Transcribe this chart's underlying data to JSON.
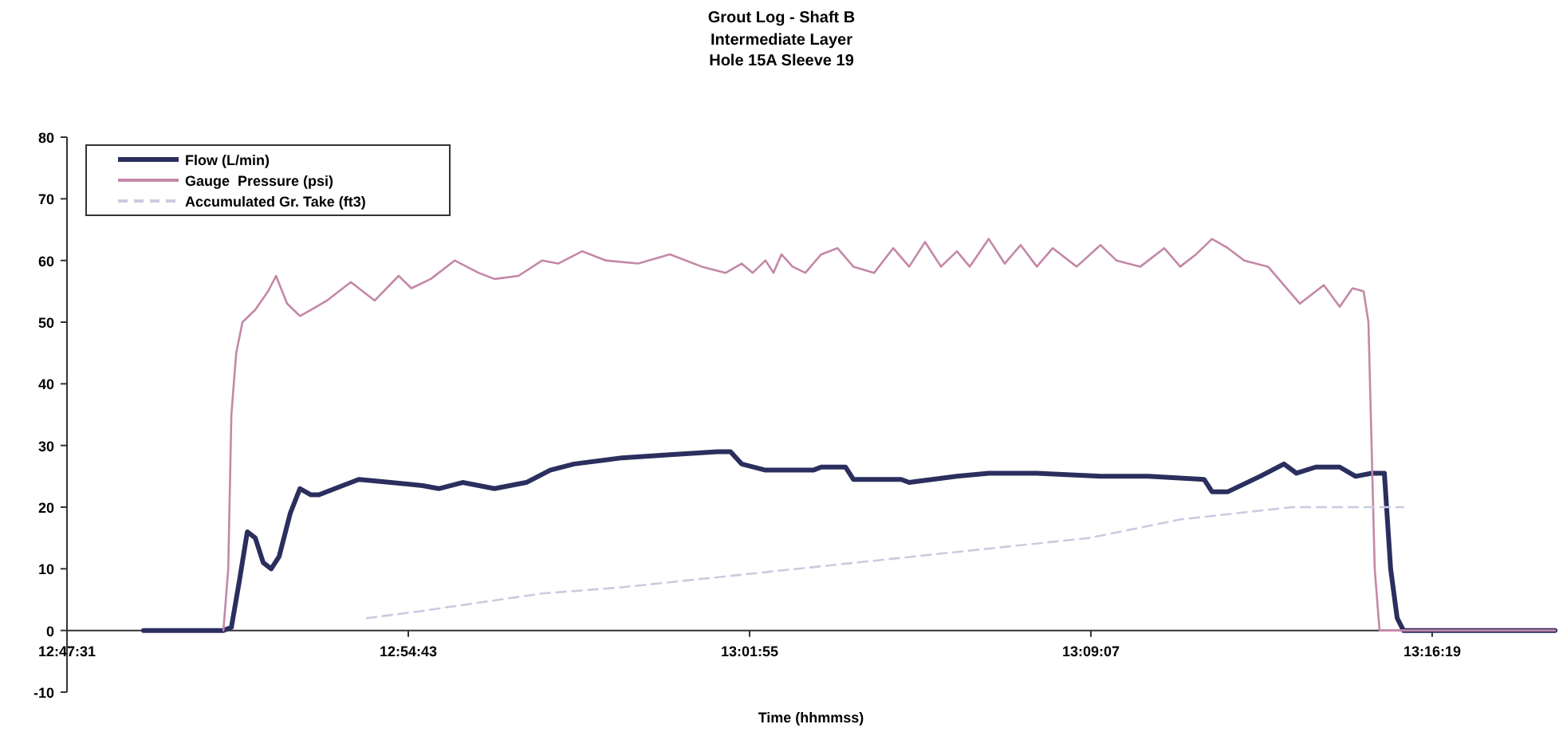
{
  "chart_data": {
    "type": "line",
    "title": "Grout Log - Shaft B",
    "subtitle": "Intermediate Layer\nHole 15A Sleeve 19",
    "xlabel": "Time (hhmmss)",
    "xlim": [
      12.7919,
      13.3151
    ],
    "xticks": [
      {
        "value": 12.7919,
        "label": "12:47:31"
      },
      {
        "value": 12.9119,
        "label": "12:54:43"
      },
      {
        "value": 13.0319,
        "label": "13:01:55"
      },
      {
        "value": 13.1519,
        "label": "13:09:07"
      },
      {
        "value": 13.2719,
        "label": "13:16:19"
      }
    ],
    "ylim": [
      -10,
      80
    ],
    "yticks": [
      -10,
      0,
      10,
      20,
      30,
      40,
      50,
      60,
      70,
      80
    ],
    "grid": false,
    "legend": "top left",
    "marker": "none",
    "series": [
      {
        "name": "Flow (L/min)",
        "color": "#2b2f5e",
        "line_style": "solid",
        "x": [
          12.8188,
          12.8469,
          12.8497,
          12.8525,
          12.8553,
          12.8581,
          12.8609,
          12.8637,
          12.8665,
          12.8704,
          12.8738,
          12.8777,
          12.8805,
          12.8861,
          12.8945,
          12.9057,
          12.9169,
          12.9226,
          12.931,
          12.9422,
          12.9534,
          12.9618,
          12.9702,
          12.987,
          13.0039,
          13.0207,
          13.0252,
          13.0291,
          13.0375,
          13.0543,
          13.0571,
          13.0656,
          13.0684,
          13.0852,
          13.088,
          13.1048,
          13.116,
          13.1329,
          13.1553,
          13.1721,
          13.1917,
          13.1945,
          13.2001,
          13.2114,
          13.2198,
          13.2242,
          13.231,
          13.2394,
          13.245,
          13.2506,
          13.2551,
          13.2573,
          13.2596,
          13.2618,
          13.3151
        ],
        "values": [
          0,
          0,
          0.5,
          8,
          16,
          15,
          11,
          10,
          12,
          19,
          23,
          22,
          22,
          23,
          24.5,
          24,
          23.5,
          23,
          24,
          23,
          24,
          26,
          27,
          28,
          28.5,
          29,
          29,
          27,
          26,
          26,
          26.5,
          26.5,
          24.5,
          24.5,
          24,
          25,
          25.5,
          25.5,
          25,
          25,
          24.5,
          22.5,
          22.5,
          25,
          27,
          25.5,
          26.5,
          26.5,
          25,
          25.5,
          25.5,
          10,
          2,
          0,
          0
        ]
      },
      {
        "name": "Gauge  Pressure (psi)",
        "color": "#c488a8",
        "line_style": "solid",
        "x": [
          12.8469,
          12.8486,
          12.8497,
          12.8514,
          12.8536,
          12.8581,
          12.8626,
          12.8654,
          12.8693,
          12.8738,
          12.8777,
          12.8833,
          12.8917,
          12.9001,
          12.9085,
          12.913,
          12.9198,
          12.9282,
          12.9366,
          12.9422,
          12.9506,
          12.959,
          12.9646,
          12.973,
          12.9814,
          12.9927,
          13.0039,
          13.0151,
          13.0235,
          13.0291,
          13.033,
          13.0375,
          13.0403,
          13.0431,
          13.047,
          13.0515,
          13.0571,
          13.0628,
          13.0684,
          13.0757,
          13.0824,
          13.088,
          13.0936,
          13.0992,
          13.1048,
          13.1093,
          13.116,
          13.1216,
          13.1272,
          13.1329,
          13.1385,
          13.1469,
          13.1553,
          13.1609,
          13.1693,
          13.1777,
          13.1833,
          13.1889,
          13.1945,
          13.2001,
          13.2058,
          13.2142,
          13.2198,
          13.2254,
          13.231,
          13.2338,
          13.2394,
          13.2439,
          13.2478,
          13.2495,
          13.2517,
          13.2534,
          13.3151
        ],
        "values": [
          0,
          10,
          35,
          45,
          50,
          52,
          55,
          57.5,
          53,
          51,
          52,
          53.5,
          56.5,
          53.5,
          57.5,
          55.5,
          57,
          60,
          58,
          57,
          57.5,
          60,
          59.5,
          61.5,
          60,
          59.5,
          61,
          59,
          58,
          59.5,
          58,
          60,
          58,
          61,
          59,
          58,
          61,
          62,
          59,
          58,
          62,
          59,
          63,
          59,
          61.5,
          59,
          63.5,
          59.5,
          62.5,
          59,
          62,
          59,
          62.5,
          60,
          59,
          62,
          59,
          61,
          63.5,
          62,
          60,
          59,
          56,
          53,
          55,
          56,
          52.5,
          55.5,
          55,
          50,
          10,
          0,
          0
        ]
      },
      {
        "name": "Accumulated Gr. Take (ft3)",
        "color": "#c8cce0",
        "line_style": "dashed",
        "x": [
          12.8973,
          12.9142,
          12.959,
          12.987,
          13.1514,
          13.1833,
          13.2226,
          13.2618
        ],
        "values": [
          2,
          3,
          6,
          7,
          15,
          18,
          20,
          20
        ]
      }
    ]
  }
}
